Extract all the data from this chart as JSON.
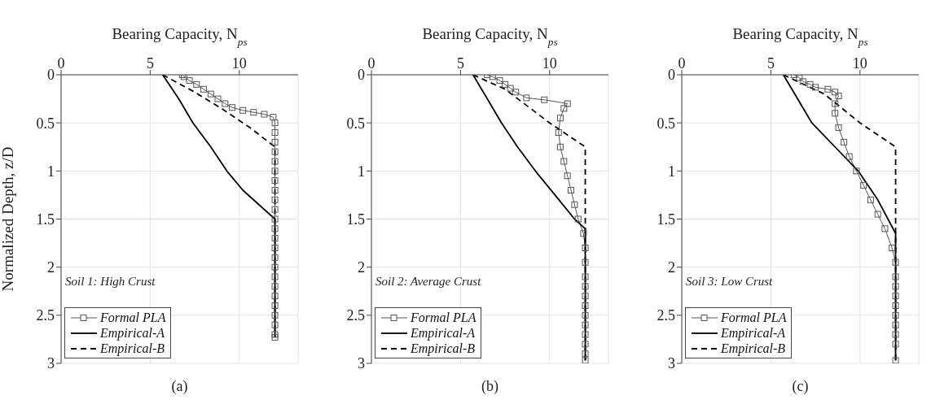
{
  "chart_data": [
    {
      "type": "line",
      "xlabel": "Bearing Capacity,  N$_{ps}$",
      "ylabel": "Normalized Depth,  z/D",
      "xlim": [
        0,
        13.3
      ],
      "xticks": [
        0,
        5,
        10
      ],
      "ylim": [
        3,
        0
      ],
      "yticks": [
        0,
        0.5,
        1,
        1.5,
        2,
        2.5,
        3
      ],
      "grid": true,
      "legend": "bottom left",
      "annotations": [
        "Soil 1: High Crust",
        "(a)"
      ],
      "series": [
        {
          "name": "Formal PLA",
          "color": "#555555",
          "marker": "square",
          "line_style": "solid",
          "x": [
            6.8,
            6.9,
            7.2,
            7.6,
            8.0,
            8.4,
            8.8,
            9.2,
            9.6,
            10.2,
            10.8,
            11.4,
            11.9,
            12,
            12,
            12,
            12,
            12,
            12,
            12,
            12,
            12,
            12,
            12,
            12,
            12,
            12,
            12,
            12,
            12,
            12,
            12,
            12,
            12,
            12,
            12,
            12
          ],
          "values": [
            0,
            0.02,
            0.06,
            0.1,
            0.15,
            0.2,
            0.25,
            0.3,
            0.34,
            0.37,
            0.39,
            0.41,
            0.44,
            0.5,
            0.6,
            0.7,
            0.8,
            0.9,
            1.0,
            1.1,
            1.2,
            1.3,
            1.4,
            1.5,
            1.6,
            1.7,
            1.8,
            1.9,
            2.0,
            2.1,
            2.2,
            2.3,
            2.4,
            2.5,
            2.6,
            2.7,
            2.73
          ]
        },
        {
          "name": "Empirical-A",
          "color": "#000000",
          "marker": "none",
          "line_style": "solid",
          "x": [
            5.7,
            6.6,
            7.4,
            8.4,
            9.3,
            10.2,
            11.1,
            12,
            12
          ],
          "values": [
            0,
            0.25,
            0.5,
            0.75,
            1.0,
            1.2,
            1.35,
            1.5,
            2.73
          ]
        },
        {
          "name": "Empirical-B",
          "color": "#000000",
          "marker": "none",
          "line_style": "dashed",
          "x": [
            5.7,
            7.4,
            9,
            10.6,
            12,
            12
          ],
          "values": [
            0,
            0.17,
            0.35,
            0.55,
            0.75,
            2.73
          ]
        }
      ]
    },
    {
      "type": "line",
      "xlabel": "Bearing Capacity,  N$_{ps}$",
      "xlim": [
        0,
        13.3
      ],
      "xticks": [
        0,
        5,
        10
      ],
      "ylim": [
        3,
        0
      ],
      "yticks": [
        0,
        0.5,
        1,
        1.5,
        2,
        2.5,
        3
      ],
      "grid": true,
      "legend": "bottom left",
      "annotations": [
        "Soil 2: Average Crust",
        "(b)"
      ],
      "series": [
        {
          "name": "Formal PLA",
          "color": "#555555",
          "marker": "square",
          "line_style": "solid",
          "x": [
            6.5,
            6.8,
            7.2,
            7.5,
            7.8,
            8.1,
            8.7,
            9.7,
            11.0,
            10.8,
            10.6,
            10.5,
            10.6,
            10.8,
            11.0,
            11.2,
            11.4,
            11.6,
            11.9,
            12,
            12,
            12,
            12,
            12,
            12,
            12,
            12,
            12,
            12,
            12,
            12
          ],
          "values": [
            0,
            0.02,
            0.06,
            0.1,
            0.14,
            0.18,
            0.24,
            0.26,
            0.3,
            0.35,
            0.45,
            0.6,
            0.75,
            0.9,
            1.05,
            1.2,
            1.35,
            1.5,
            1.65,
            1.8,
            1.95,
            2.1,
            2.2,
            2.3,
            2.4,
            2.5,
            2.6,
            2.7,
            2.8,
            2.9,
            2.97
          ]
        },
        {
          "name": "Empirical-A",
          "color": "#000000",
          "marker": "none",
          "line_style": "solid",
          "x": [
            5.7,
            6.5,
            7.3,
            8.2,
            9.2,
            10.3,
            11.4,
            12,
            12
          ],
          "values": [
            0,
            0.25,
            0.5,
            0.75,
            1.0,
            1.25,
            1.5,
            1.6,
            2.97
          ]
        },
        {
          "name": "Empirical-B",
          "color": "#000000",
          "marker": "none",
          "line_style": "dashed",
          "x": [
            5.7,
            7.5,
            10,
            12,
            12
          ],
          "values": [
            0,
            0.15,
            0.5,
            0.75,
            2.97
          ]
        }
      ]
    },
    {
      "type": "line",
      "xlabel": "Bearing Capacity,  N$_{ps}$",
      "xlim": [
        0,
        13.3
      ],
      "xticks": [
        0,
        5,
        10
      ],
      "ylim": [
        3,
        0
      ],
      "yticks": [
        0,
        0.5,
        1,
        1.5,
        2,
        2.5,
        3
      ],
      "grid": true,
      "legend": "bottom left",
      "annotations": [
        "Soil 3: Low Crust",
        "(c)"
      ],
      "series": [
        {
          "name": "Formal PLA",
          "color": "#555555",
          "marker": "square",
          "line_style": "solid",
          "x": [
            6.3,
            6.6,
            6.8,
            7.2,
            7.5,
            8.2,
            8.6,
            8.8,
            8.6,
            8.6,
            8.8,
            9.1,
            9.4,
            9.8,
            10.2,
            10.6,
            11.0,
            11.4,
            11.8,
            12,
            12,
            12,
            12,
            12,
            12,
            12,
            12,
            12,
            12
          ],
          "values": [
            0,
            0.03,
            0.07,
            0.1,
            0.13,
            0.15,
            0.18,
            0.22,
            0.3,
            0.4,
            0.55,
            0.7,
            0.85,
            1.0,
            1.15,
            1.3,
            1.45,
            1.6,
            1.8,
            1.95,
            2.1,
            2.2,
            2.3,
            2.4,
            2.5,
            2.6,
            2.7,
            2.8,
            2.97
          ]
        },
        {
          "name": "Empirical-A",
          "color": "#000000",
          "marker": "none",
          "line_style": "solid",
          "x": [
            5.7,
            6.5,
            7.3,
            8.6,
            9.9,
            11.0,
            12,
            12
          ],
          "values": [
            0,
            0.25,
            0.5,
            0.75,
            1.0,
            1.3,
            1.65,
            2.97
          ]
        },
        {
          "name": "Empirical-B",
          "color": "#000000",
          "marker": "none",
          "line_style": "dashed",
          "x": [
            5.7,
            8,
            10,
            12,
            12
          ],
          "values": [
            0,
            0.2,
            0.5,
            0.75,
            2.97
          ]
        }
      ]
    }
  ]
}
